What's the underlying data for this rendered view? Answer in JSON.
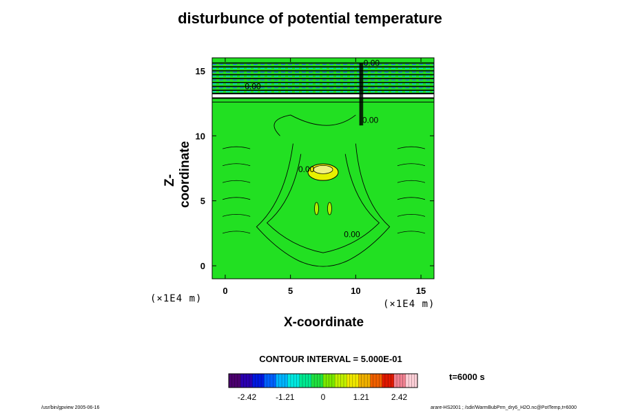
{
  "chart_data": {
    "type": "heatmap",
    "title": "disturbunce of potential temperature",
    "xlabel": "X-coordinate",
    "ylabel": "Z-coordinate",
    "x_unit": "(×1E4 m)",
    "xlim": [
      -1,
      16
    ],
    "ylim": [
      -1,
      16
    ],
    "x_ticks": [
      0,
      5,
      10,
      15
    ],
    "y_ticks": [
      0,
      5,
      10,
      15
    ],
    "x_tick_labels": [
      "0",
      "5",
      "10",
      "15"
    ],
    "y_tick_labels": [
      "0",
      "5",
      "10",
      "15"
    ],
    "grid": false,
    "contour_interval": "CONTOUR INTERVAL = 5.000E-01",
    "contour_labels": [
      "0.00",
      "0.00",
      "0.00",
      "0.00",
      "0.00"
    ],
    "colorbar": {
      "ticks": [
        -2.42,
        -1.21,
        0,
        1.21,
        2.42
      ],
      "tick_labels": [
        "-2.42",
        "-1.21",
        "0",
        "1.21",
        "2.42"
      ],
      "range": [
        -3.0,
        3.0
      ],
      "colors": [
        "#4b006e",
        "#2a00b0",
        "#0018e0",
        "#0060ff",
        "#00b4ff",
        "#00e8e0",
        "#00e890",
        "#20e040",
        "#7ae800",
        "#c0f000",
        "#f0e800",
        "#f0b000",
        "#f06000",
        "#e01800",
        "#f08090",
        "#ffd0d8"
      ]
    },
    "background_color": "#22e022",
    "time_label": "t=6000 s"
  },
  "footer": {
    "left": "/usr/bin/gpview 2005-06-16",
    "right": "arare-HS2001 ; /sdir/WarmBubPrm_dry6_H2O.nc@PotTemp,t=6000"
  }
}
